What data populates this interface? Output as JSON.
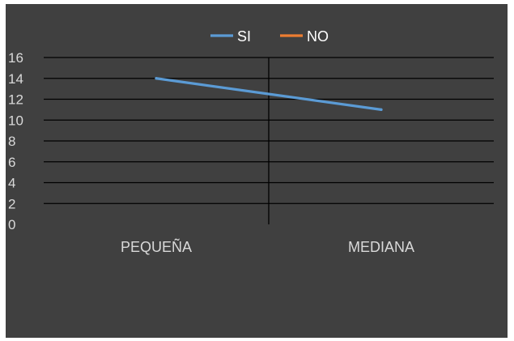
{
  "chart_data": {
    "type": "line",
    "categories": [
      "PEQUEÑA",
      "MEDIANA"
    ],
    "series": [
      {
        "name": "SI",
        "color": "#5b9bd5",
        "values": [
          14,
          11
        ]
      },
      {
        "name": "NO",
        "color": "#ed7d31",
        "values": [
          null,
          null
        ]
      }
    ],
    "ylim": [
      0,
      16
    ],
    "yticks": [
      0,
      2,
      4,
      6,
      8,
      10,
      12,
      14,
      16
    ],
    "grid": true,
    "legend_position": "top",
    "colors": {
      "background": "#404040",
      "gridline": "#000000",
      "text": "#d9d9d9"
    }
  }
}
